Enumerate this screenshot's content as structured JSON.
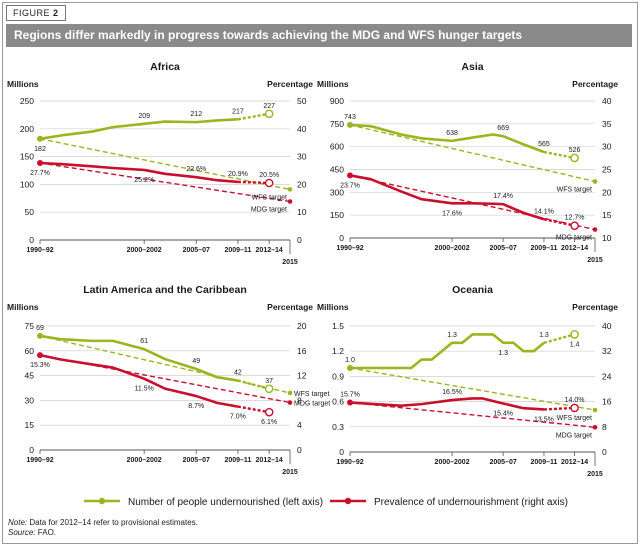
{
  "figure": {
    "label": "FIGURE",
    "number": "2"
  },
  "title": "Regions differ markedly in progress towards achieving the MDG and WFS hunger targets",
  "colors": {
    "green": "#9cb51e",
    "red": "#c8102e",
    "grid": "#cfcfcf",
    "header": "#8a8a8a"
  },
  "legend": {
    "green_label": "Number of people undernourished (left axis)",
    "red_label": "Prevalence of undernourishment (right axis)"
  },
  "note": {
    "note_prefix": "Note:",
    "note_text": " Data for 2012–14 refer to provisional estimates.",
    "source_prefix": "Source:",
    "source_text": " FAO."
  },
  "chart_data": [
    {
      "title": "Africa",
      "type": "line",
      "left_axis_label": "Millions",
      "right_axis_label": "Percentage",
      "x_ticks": [
        "1990–92",
        "2000–2002",
        "2005–07",
        "2009–11",
        "2012–14"
      ],
      "x_extra_label": "2015",
      "left_ticks": [
        0,
        50,
        100,
        150,
        200,
        250
      ],
      "right_ticks": [
        0,
        10,
        20,
        30,
        40,
        50
      ],
      "ylim_left": [
        0,
        250
      ],
      "ylim_right": [
        0,
        50
      ],
      "series": [
        {
          "name": "Number of people undernourished",
          "axis": "left",
          "color": "green",
          "x": [
            1991,
            1993,
            1996,
            1998,
            2001,
            2003,
            2006,
            2008,
            2010
          ],
          "values": [
            182,
            188,
            195,
            203,
            209,
            213,
            212,
            215,
            217
          ],
          "provisional_x": [
            2010,
            2013
          ],
          "provisional_values": [
            217,
            227
          ]
        },
        {
          "name": "Prevalence of undernourishment",
          "axis": "right",
          "color": "red",
          "x": [
            1991,
            1993,
            1996,
            1998,
            2001,
            2003,
            2006,
            2008,
            2010
          ],
          "values": [
            27.7,
            27.3,
            26.5,
            25.9,
            25.2,
            23.8,
            22.6,
            21.5,
            20.9
          ],
          "provisional_x": [
            2010,
            2013
          ],
          "provisional_values": [
            20.9,
            20.5
          ]
        }
      ],
      "targets": [
        {
          "name": "WFS target",
          "axis": "left",
          "color": "green",
          "from": [
            1991,
            182
          ],
          "to": [
            2015,
            91
          ]
        },
        {
          "name": "MDG target",
          "axis": "right",
          "color": "red",
          "from": [
            1991,
            27.7
          ],
          "to": [
            2015,
            13.85
          ]
        }
      ],
      "data_labels": [
        {
          "text": "182",
          "axis": "left",
          "x": 1991,
          "y": 182,
          "pos": "below"
        },
        {
          "text": "209",
          "axis": "left",
          "x": 2001,
          "y": 209,
          "pos": "above"
        },
        {
          "text": "212",
          "axis": "left",
          "x": 2006,
          "y": 212,
          "pos": "above"
        },
        {
          "text": "217",
          "axis": "left",
          "x": 2010,
          "y": 217,
          "pos": "above"
        },
        {
          "text": "227",
          "axis": "left",
          "x": 2013,
          "y": 227,
          "pos": "above"
        },
        {
          "text": "27.7%",
          "axis": "right",
          "x": 1991,
          "y": 27.7,
          "pos": "below"
        },
        {
          "text": "25.2%",
          "axis": "right",
          "x": 2001,
          "y": 25.2,
          "pos": "below"
        },
        {
          "text": "22.6%",
          "axis": "right",
          "x": 2006,
          "y": 22.6,
          "pos": "above"
        },
        {
          "text": "20.9%",
          "axis": "right",
          "x": 2010,
          "y": 20.9,
          "pos": "above"
        },
        {
          "text": "20.5%",
          "axis": "right",
          "x": 2013,
          "y": 20.5,
          "pos": "above"
        },
        {
          "text": "WFS target",
          "axis": "left",
          "x": 2015,
          "y": 91,
          "pos": "left-below"
        },
        {
          "text": "MDG target",
          "axis": "right",
          "x": 2015,
          "y": 13.85,
          "pos": "left-below"
        }
      ]
    },
    {
      "title": "Asia",
      "type": "line",
      "left_axis_label": "Millions",
      "right_axis_label": "Percentage",
      "x_ticks": [
        "1990–92",
        "2000–2002",
        "2005–07",
        "2009–11",
        "2012–14"
      ],
      "x_extra_label": "2015",
      "left_ticks": [
        0,
        150,
        300,
        450,
        600,
        750,
        900
      ],
      "right_ticks": [
        10,
        15,
        20,
        25,
        30,
        35,
        40
      ],
      "ylim_left": [
        0,
        900
      ],
      "ylim_right": [
        10,
        40
      ],
      "series": [
        {
          "name": "Number of people undernourished",
          "axis": "left",
          "color": "green",
          "x": [
            1991,
            1993,
            1996,
            1998,
            2001,
            2003,
            2005,
            2006,
            2008,
            2010
          ],
          "values": [
            743,
            735,
            680,
            655,
            638,
            660,
            680,
            669,
            615,
            565
          ],
          "provisional_x": [
            2010,
            2013
          ],
          "provisional_values": [
            565,
            526
          ]
        },
        {
          "name": "Prevalence of undernourishment",
          "axis": "right",
          "color": "red",
          "x": [
            1991,
            1993,
            1996,
            1998,
            2001,
            2003,
            2005,
            2006,
            2008,
            2010
          ],
          "values": [
            23.7,
            22.9,
            20.2,
            18.5,
            17.6,
            17.6,
            17.5,
            17.4,
            15.5,
            14.1
          ],
          "provisional_x": [
            2010,
            2013
          ],
          "provisional_values": [
            14.1,
            12.7
          ]
        }
      ],
      "targets": [
        {
          "name": "WFS target",
          "axis": "left",
          "color": "green",
          "from": [
            1991,
            743
          ],
          "to": [
            2015,
            371.5
          ]
        },
        {
          "name": "MDG target",
          "axis": "right",
          "color": "red",
          "from": [
            1991,
            23.7
          ],
          "to": [
            2015,
            11.85
          ]
        }
      ],
      "data_labels": [
        {
          "text": "743",
          "axis": "left",
          "x": 1991,
          "y": 743,
          "pos": "above"
        },
        {
          "text": "638",
          "axis": "left",
          "x": 2001,
          "y": 638,
          "pos": "above"
        },
        {
          "text": "669",
          "axis": "left",
          "x": 2006,
          "y": 669,
          "pos": "above"
        },
        {
          "text": "565",
          "axis": "left",
          "x": 2010,
          "y": 565,
          "pos": "above"
        },
        {
          "text": "526",
          "axis": "left",
          "x": 2013,
          "y": 526,
          "pos": "above"
        },
        {
          "text": "23.7%",
          "axis": "right",
          "x": 1991,
          "y": 23.7,
          "pos": "below"
        },
        {
          "text": "17.6%",
          "axis": "right",
          "x": 2001,
          "y": 17.6,
          "pos": "below"
        },
        {
          "text": "17.4%",
          "axis": "right",
          "x": 2006,
          "y": 17.4,
          "pos": "above"
        },
        {
          "text": "14.1%",
          "axis": "right",
          "x": 2010,
          "y": 14.1,
          "pos": "above"
        },
        {
          "text": "12.7%",
          "axis": "right",
          "x": 2013,
          "y": 12.7,
          "pos": "above"
        },
        {
          "text": "WFS target",
          "axis": "left",
          "x": 2015,
          "y": 371.5,
          "pos": "left-below"
        },
        {
          "text": "MDG target",
          "axis": "right",
          "x": 2015,
          "y": 11.85,
          "pos": "left-below"
        }
      ]
    },
    {
      "title": "Latin America and the Caribbean",
      "type": "line",
      "left_axis_label": "Millions",
      "right_axis_label": "Percentage",
      "x_ticks": [
        "1990–92",
        "2000–2002",
        "2005–07",
        "2009–11",
        "2012–14"
      ],
      "x_extra_label": "2015",
      "left_ticks": [
        0,
        15,
        30,
        45,
        60,
        75
      ],
      "right_ticks": [
        0,
        4,
        8,
        12,
        16,
        20
      ],
      "ylim_left": [
        0,
        75
      ],
      "ylim_right": [
        0,
        20
      ],
      "series": [
        {
          "name": "Number of people undernourished",
          "axis": "left",
          "color": "green",
          "x": [
            1991,
            1993,
            1996,
            1998,
            2001,
            2003,
            2006,
            2008,
            2010
          ],
          "values": [
            69,
            67,
            66,
            66,
            61,
            55,
            49,
            44,
            42
          ],
          "provisional_x": [
            2010,
            2013
          ],
          "provisional_values": [
            42,
            37
          ]
        },
        {
          "name": "Prevalence of undernourishment",
          "axis": "right",
          "color": "red",
          "x": [
            1991,
            1993,
            1996,
            1998,
            2001,
            2003,
            2006,
            2008,
            2010
          ],
          "values": [
            15.3,
            14.6,
            13.8,
            13.3,
            11.5,
            9.9,
            8.7,
            7.6,
            7.0
          ],
          "provisional_x": [
            2010,
            2013
          ],
          "provisional_values": [
            7.0,
            6.1
          ]
        }
      ],
      "targets": [
        {
          "name": "WFS target",
          "axis": "left",
          "color": "green",
          "from": [
            1991,
            69
          ],
          "to": [
            2015,
            34.5
          ]
        },
        {
          "name": "MDG target",
          "axis": "right",
          "color": "red",
          "from": [
            1991,
            15.3
          ],
          "to": [
            2015,
            7.65
          ]
        }
      ],
      "data_labels": [
        {
          "text": "69",
          "axis": "left",
          "x": 1991,
          "y": 69,
          "pos": "above"
        },
        {
          "text": "61",
          "axis": "left",
          "x": 2001,
          "y": 61,
          "pos": "above"
        },
        {
          "text": "49",
          "axis": "left",
          "x": 2006,
          "y": 49,
          "pos": "above"
        },
        {
          "text": "42",
          "axis": "left",
          "x": 2010,
          "y": 42,
          "pos": "above"
        },
        {
          "text": "37",
          "axis": "left",
          "x": 2013,
          "y": 37,
          "pos": "above"
        },
        {
          "text": "15.3%",
          "axis": "right",
          "x": 1991,
          "y": 15.3,
          "pos": "below"
        },
        {
          "text": "11.5%",
          "axis": "right",
          "x": 2001,
          "y": 11.5,
          "pos": "below"
        },
        {
          "text": "8.7%",
          "axis": "right",
          "x": 2006,
          "y": 8.7,
          "pos": "below"
        },
        {
          "text": "7.0%",
          "axis": "right",
          "x": 2010,
          "y": 7.0,
          "pos": "below"
        },
        {
          "text": "6.1%",
          "axis": "right",
          "x": 2013,
          "y": 6.1,
          "pos": "below"
        },
        {
          "text": "WFS target",
          "axis": "left",
          "x": 2015,
          "y": 34.5,
          "pos": "right"
        },
        {
          "text": "MDG target",
          "axis": "right",
          "x": 2015,
          "y": 7.65,
          "pos": "right"
        }
      ]
    },
    {
      "title": "Oceania",
      "type": "line",
      "left_axis_label": "Millions",
      "right_axis_label": "Percentage",
      "x_ticks": [
        "1990–92",
        "2000–2002",
        "2005–07",
        "2009–11",
        "2012–14"
      ],
      "x_extra_label": "2015",
      "left_ticks": [
        0,
        0.3,
        0.6,
        0.9,
        1.2,
        1.5
      ],
      "right_ticks": [
        0,
        8,
        16,
        24,
        32,
        40
      ],
      "ylim_left": [
        0,
        1.5
      ],
      "ylim_right": [
        0,
        40
      ],
      "series": [
        {
          "name": "Number of people undernourished",
          "axis": "left",
          "color": "green",
          "x": [
            1991,
            1993,
            1996,
            1997,
            1998,
            1999,
            2000,
            2001,
            2002,
            2003,
            2005,
            2006,
            2007,
            2008,
            2009,
            2010
          ],
          "values": [
            1.0,
            1.0,
            1.0,
            1.0,
            1.1,
            1.1,
            1.2,
            1.3,
            1.3,
            1.4,
            1.4,
            1.3,
            1.3,
            1.2,
            1.2,
            1.3
          ],
          "provisional_x": [
            2010,
            2013
          ],
          "provisional_values": [
            1.3,
            1.4
          ]
        },
        {
          "name": "Prevalence of undernourishment",
          "axis": "right",
          "color": "red",
          "x": [
            1991,
            1993,
            1996,
            1998,
            2001,
            2003,
            2004,
            2006,
            2008,
            2010
          ],
          "values": [
            15.7,
            15.3,
            14.7,
            15.2,
            16.5,
            17.0,
            17.0,
            15.4,
            13.9,
            13.5
          ],
          "provisional_x": [
            2010,
            2013
          ],
          "provisional_values": [
            13.5,
            14.0
          ]
        }
      ],
      "targets": [
        {
          "name": "WFS target",
          "axis": "left",
          "color": "green",
          "from": [
            1991,
            1.0
          ],
          "to": [
            2015,
            0.5
          ]
        },
        {
          "name": "MDG target",
          "axis": "right",
          "color": "red",
          "from": [
            1991,
            15.7
          ],
          "to": [
            2015,
            7.85
          ]
        }
      ],
      "data_labels": [
        {
          "text": "1.0",
          "axis": "left",
          "x": 1991,
          "y": 1.0,
          "pos": "above"
        },
        {
          "text": "1.3",
          "axis": "left",
          "x": 2001,
          "y": 1.3,
          "pos": "above"
        },
        {
          "text": "1.3",
          "axis": "left",
          "x": 2006,
          "y": 1.3,
          "pos": "below"
        },
        {
          "text": "1.3",
          "axis": "left",
          "x": 2010,
          "y": 1.3,
          "pos": "above"
        },
        {
          "text": "1.4",
          "axis": "left",
          "x": 2013,
          "y": 1.4,
          "pos": "below"
        },
        {
          "text": "15.7%",
          "axis": "right",
          "x": 1991,
          "y": 15.7,
          "pos": "above"
        },
        {
          "text": "16.5%",
          "axis": "right",
          "x": 2001,
          "y": 16.5,
          "pos": "above"
        },
        {
          "text": "15.4%",
          "axis": "right",
          "x": 2006,
          "y": 15.4,
          "pos": "below"
        },
        {
          "text": "13.5%",
          "axis": "right",
          "x": 2010,
          "y": 13.5,
          "pos": "below"
        },
        {
          "text": "14.0%",
          "axis": "right",
          "x": 2013,
          "y": 14.0,
          "pos": "above"
        },
        {
          "text": "WFS target",
          "axis": "left",
          "x": 2015,
          "y": 0.5,
          "pos": "left-below"
        },
        {
          "text": "MDG target",
          "axis": "right",
          "x": 2015,
          "y": 7.85,
          "pos": "left-below"
        }
      ]
    }
  ]
}
